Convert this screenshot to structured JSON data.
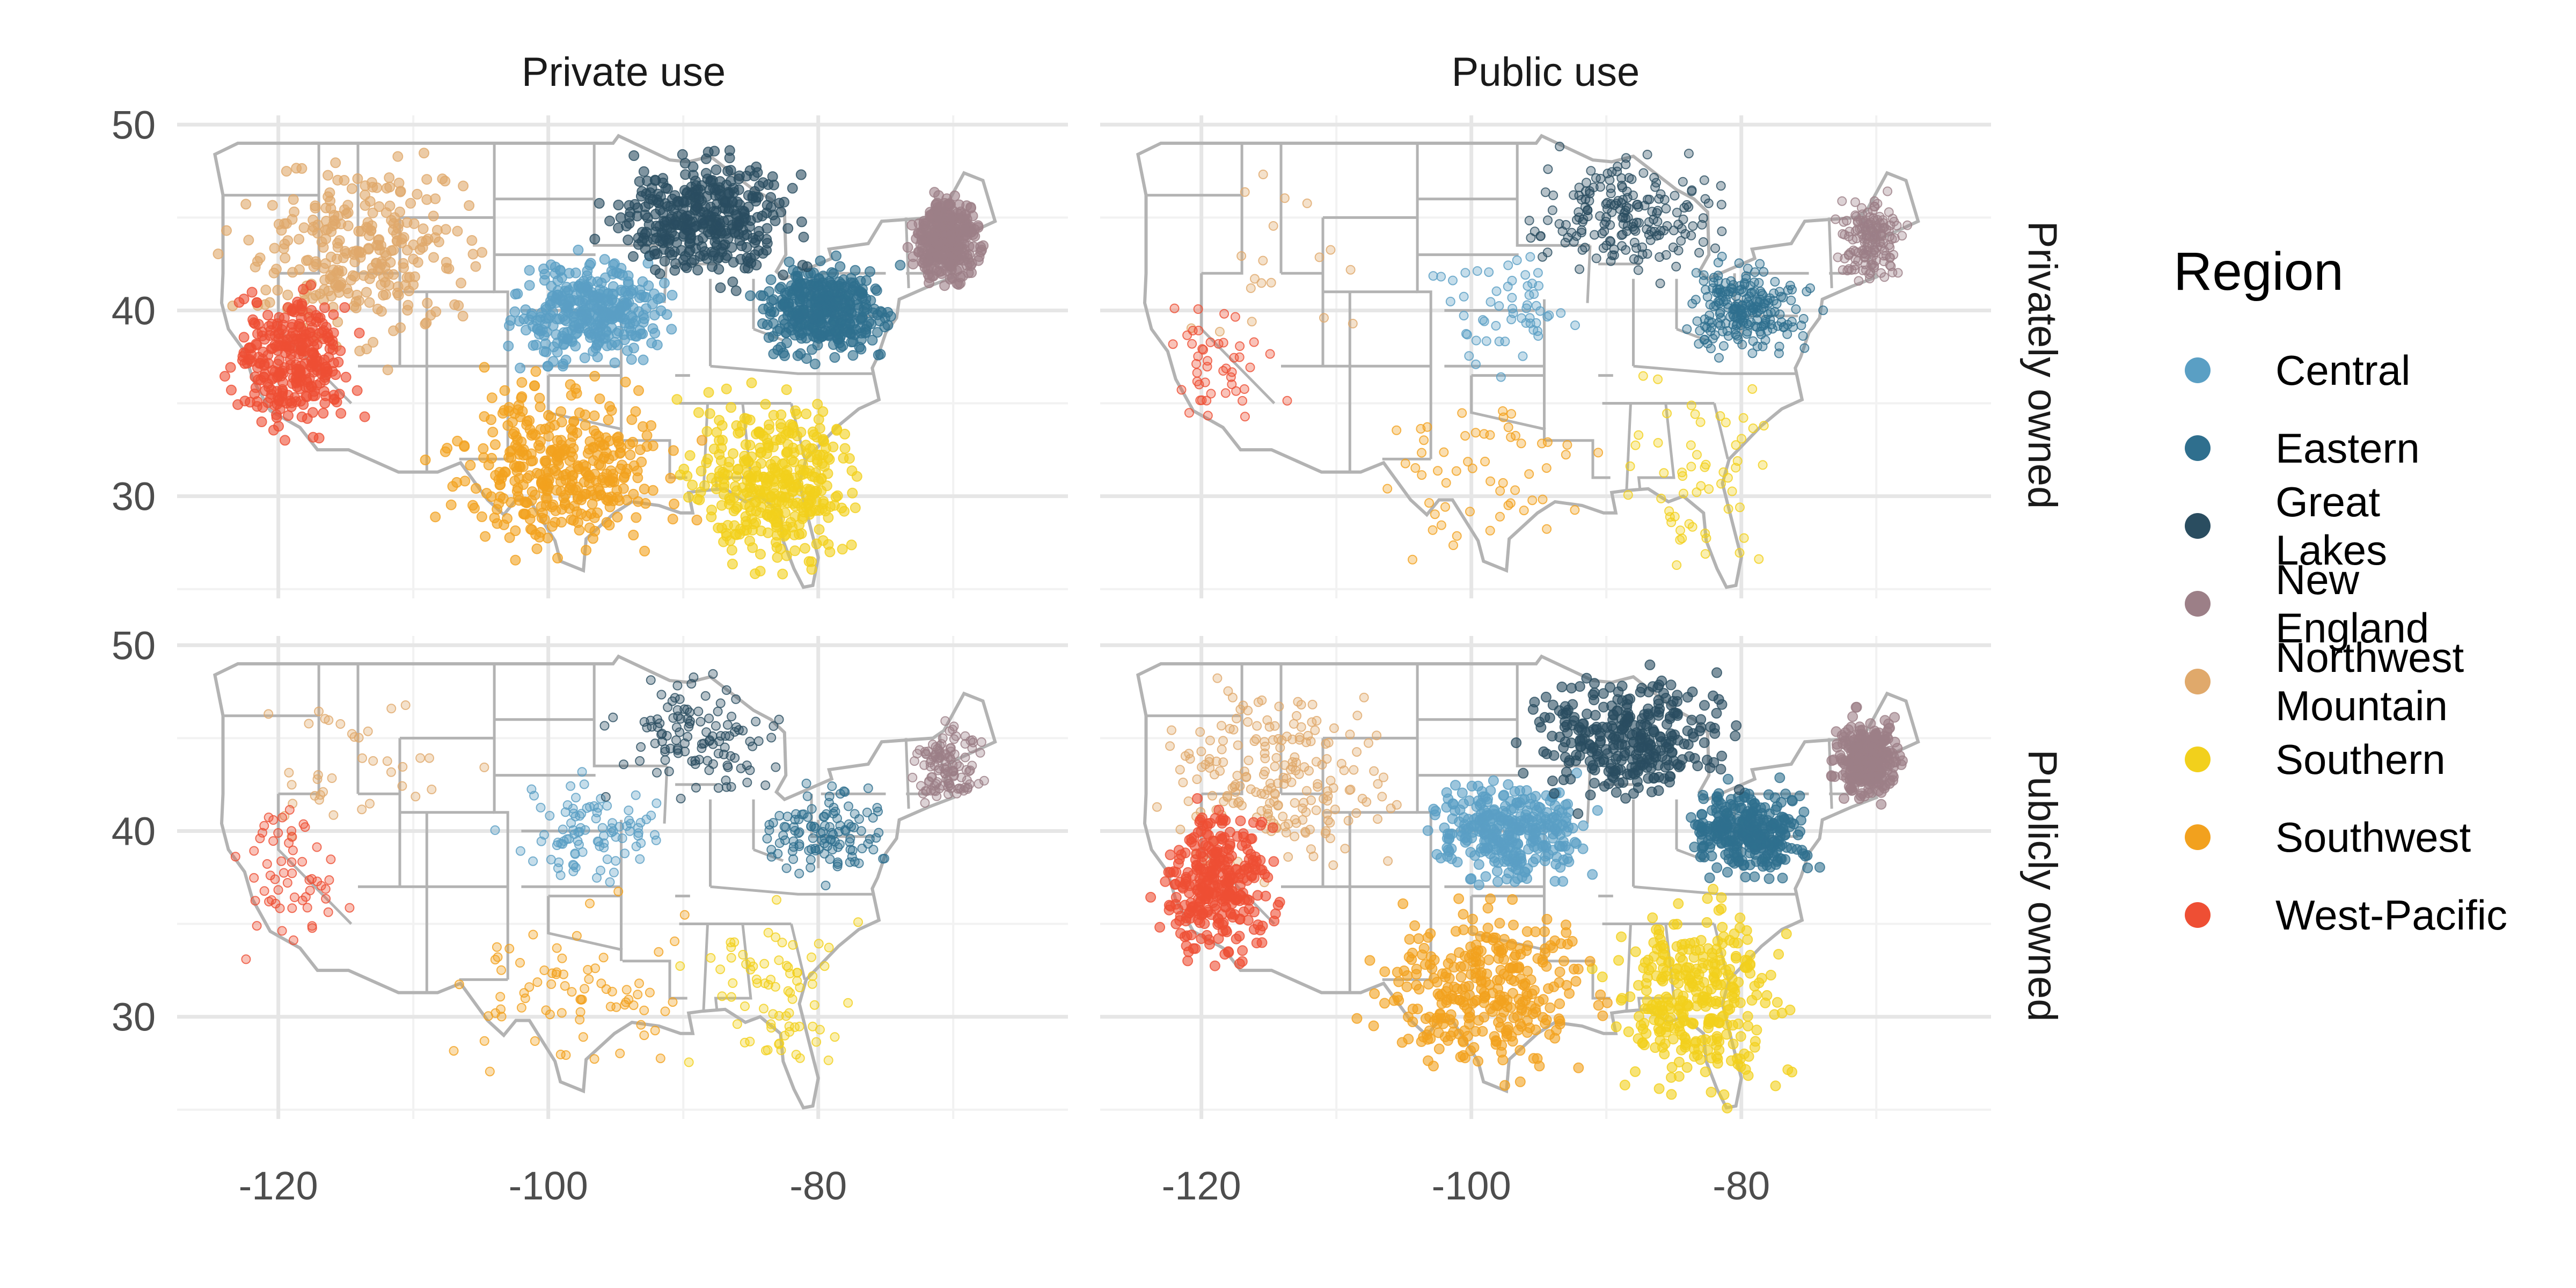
{
  "chart_data": {
    "type": "scatter",
    "title": "",
    "xlabel": "",
    "ylabel": "",
    "xlim": [
      -127.5,
      -61.5
    ],
    "ylim": [
      24.5,
      50.5
    ],
    "x_ticks": [
      -120,
      -100,
      -80
    ],
    "x_tick_labels": [
      "-120",
      "-100",
      "-80"
    ],
    "y_ticks": [
      30,
      40,
      50
    ],
    "y_tick_labels": [
      "30",
      "40",
      "50"
    ],
    "grid": true,
    "facet_columns": [
      "Private use",
      "Public use"
    ],
    "facet_rows": [
      "Privately owned",
      "Publicly owned"
    ],
    "legend": {
      "title": "Region",
      "position": "right",
      "entries": [
        {
          "label": "Central",
          "color": "#5a9fc4"
        },
        {
          "label": "Eastern",
          "color": "#2f6f8e"
        },
        {
          "label": "Great Lakes",
          "color": "#2a4d60"
        },
        {
          "label": "New England",
          "color": "#9c7f87"
        },
        {
          "label": "Northwest Mountain",
          "color": "#e0a96b"
        },
        {
          "label": "Southern",
          "color": "#f2d01c"
        },
        {
          "label": "Southwest",
          "color": "#f2a11e"
        },
        {
          "label": "West-Pacific",
          "color": "#ee4f34"
        }
      ]
    },
    "regions": [
      {
        "name": "Central",
        "color": "#5a9fc4",
        "x": [
          -104,
          -90
        ],
        "y": [
          36.5,
          43.5
        ],
        "density": {
          "private_use|privately_owned": 0.9,
          "public_use|privately_owned": 0.15,
          "private_use|publicly_owned": 0.25,
          "public_use|publicly_owned": 0.85
        }
      },
      {
        "name": "Eastern",
        "color": "#2f6f8e",
        "x": [
          -85,
          -74
        ],
        "y": [
          37,
          43
        ],
        "density": {
          "private_use|privately_owned": 1.0,
          "public_use|privately_owned": 0.55,
          "private_use|publicly_owned": 0.3,
          "public_use|publicly_owned": 0.8
        }
      },
      {
        "name": "Great Lakes",
        "color": "#2a4d60",
        "x": [
          -97,
          -80
        ],
        "y": [
          41,
          49
        ],
        "density": {
          "private_use|privately_owned": 1.0,
          "public_use|privately_owned": 0.5,
          "private_use|publicly_owned": 0.3,
          "public_use|publicly_owned": 0.85
        }
      },
      {
        "name": "New England",
        "color": "#9c7f87",
        "x": [
          -73.5,
          -67.5
        ],
        "y": [
          41.2,
          46.5
        ],
        "density": {
          "private_use|privately_owned": 1.0,
          "public_use|privately_owned": 0.4,
          "private_use|publicly_owned": 0.3,
          "public_use|publicly_owned": 0.8
        }
      },
      {
        "name": "Northwest Mountain",
        "color": "#e0a96b",
        "x": [
          -124,
          -104
        ],
        "y": [
          37,
          49
        ],
        "density": {
          "private_use|privately_owned": 0.75,
          "public_use|privately_owned": 0.05,
          "private_use|publicly_owned": 0.1,
          "public_use|publicly_owned": 0.55
        }
      },
      {
        "name": "Southern",
        "color": "#f2d01c",
        "x": [
          -91,
          -75.5
        ],
        "y": [
          25,
          37
        ],
        "density": {
          "private_use|privately_owned": 1.0,
          "public_use|privately_owned": 0.15,
          "private_use|publicly_owned": 0.2,
          "public_use|publicly_owned": 0.85
        }
      },
      {
        "name": "Southwest",
        "color": "#f2a11e",
        "x": [
          -109,
          -89
        ],
        "y": [
          26,
          37
        ],
        "density": {
          "private_use|privately_owned": 1.0,
          "public_use|privately_owned": 0.15,
          "private_use|publicly_owned": 0.2,
          "public_use|publicly_owned": 0.85
        }
      },
      {
        "name": "West-Pacific",
        "color": "#ee4f34",
        "x": [
          -124,
          -113.5
        ],
        "y": [
          32.5,
          42
        ],
        "density": {
          "private_use|privately_owned": 0.8,
          "public_use|privately_owned": 0.12,
          "private_use|publicly_owned": 0.15,
          "public_use|publicly_owned": 0.85
        }
      }
    ]
  }
}
